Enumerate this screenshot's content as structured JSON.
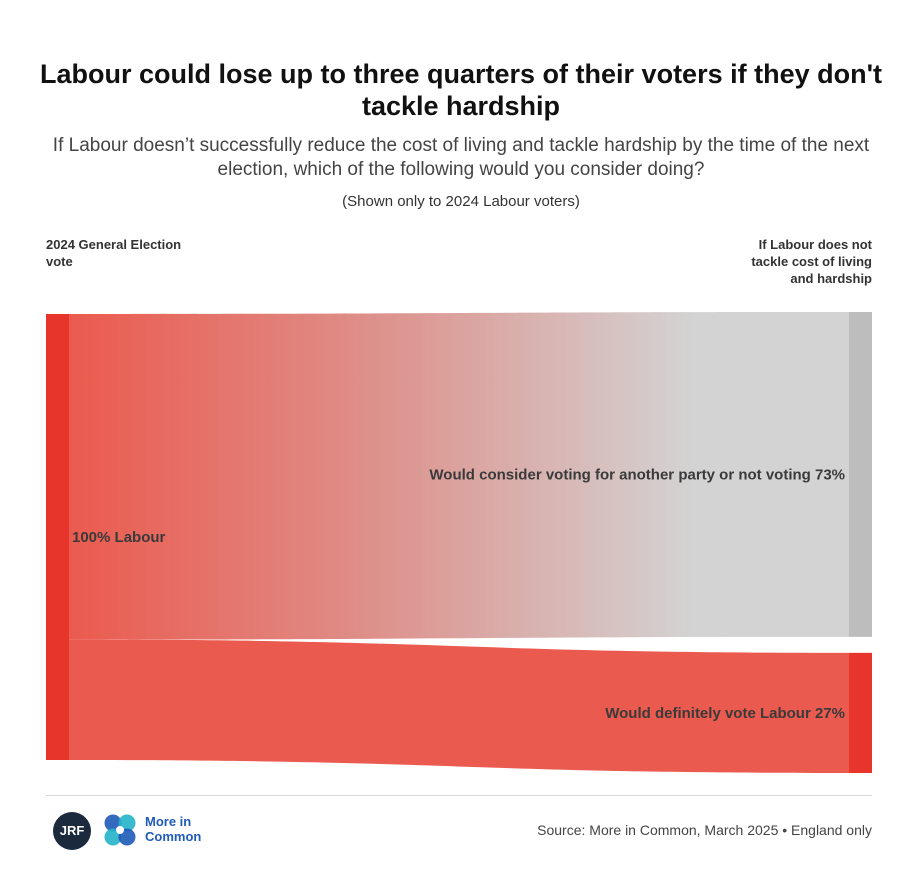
{
  "title": "Labour could lose up to three quarters of their voters if they don't tackle hardship",
  "subtitle": "If Labour doesn’t successfully reduce the cost of living and tackle hardship by the time of the next election, which of the following would you consider doing?",
  "note": "(Shown only to 2024 Labour voters)",
  "colors": {
    "labour_red": "#e8352b",
    "flow_red": "#eb5a4e",
    "grey_node": "#bdbdbd",
    "grey_flow": "#d3d3d3",
    "logo_dark": "#1c2a3d",
    "logo_blue": "#1f5bb8",
    "logo_teal": "#25b2c9"
  },
  "chart_data": {
    "type": "sankey",
    "left_column_label": "2024 General Election vote",
    "right_column_label": "If Labour does not tackle cost of living and hardship",
    "source_node": {
      "label": "100% Labour",
      "value": 100
    },
    "flows": [
      {
        "label": "Would consider voting for another party or not voting 73%",
        "value": 73,
        "color_key": "grey"
      },
      {
        "label": "Would definitely vote Labour 27%",
        "value": 27,
        "color_key": "red"
      }
    ]
  },
  "footer": {
    "jrf_logo_text": "JRF",
    "mic_logo_text_line1": "More in",
    "mic_logo_text_line2": "Common",
    "source": "Source: More in Common, March 2025 • England only"
  },
  "icons": [
    "jrf-logo",
    "more-in-common-logo"
  ]
}
